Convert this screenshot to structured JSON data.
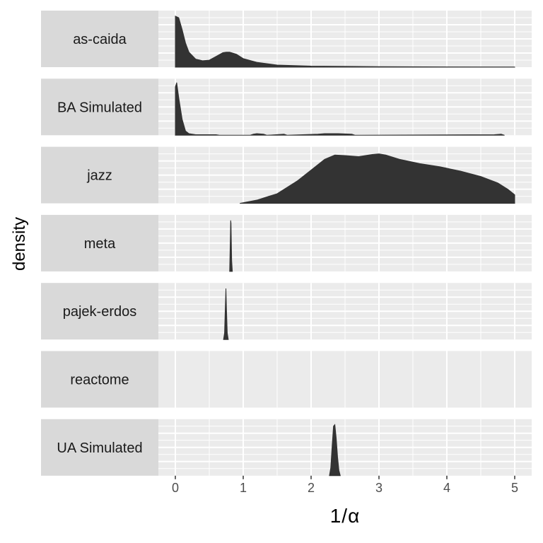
{
  "chart_data": {
    "type": "area",
    "facet_layout": "stacked rows, strip labels on left",
    "xlabel": "1/α",
    "ylabel": "density",
    "xlim": [
      -0.25,
      5.25
    ],
    "x_ticks": [
      0,
      1,
      2,
      3,
      4,
      5
    ],
    "x_tick_labels": [
      "0",
      "1",
      "2",
      "3",
      "4",
      "5"
    ],
    "grid": true,
    "fill_color": "#333333",
    "panel_background": "#ebebeb",
    "strip_background": "#d9d9d9",
    "facets": [
      {
        "label": "as-caida",
        "x": [
          0,
          0.05,
          0.1,
          0.15,
          0.2,
          0.3,
          0.4,
          0.5,
          0.6,
          0.7,
          0.75,
          0.8,
          0.9,
          1.0,
          1.2,
          1.5,
          2.0,
          3.0,
          4.0,
          5.0
        ],
        "density": [
          0.95,
          0.92,
          0.7,
          0.45,
          0.28,
          0.15,
          0.12,
          0.13,
          0.2,
          0.27,
          0.28,
          0.28,
          0.24,
          0.16,
          0.09,
          0.04,
          0.02,
          0.01,
          0.005,
          0.004
        ]
      },
      {
        "label": "BA Simulated",
        "x": [
          0,
          0.02,
          0.05,
          0.1,
          0.15,
          0.2,
          0.3,
          0.6,
          0.65,
          1.1,
          1.15,
          1.2,
          1.3,
          1.35,
          1.6,
          1.65,
          2.1,
          2.2,
          2.4,
          2.6,
          2.65,
          4.7,
          4.8,
          4.85
        ],
        "density": [
          0.9,
          0.98,
          0.7,
          0.3,
          0.08,
          0.03,
          0.01,
          0.01,
          0.0,
          0.0,
          0.02,
          0.03,
          0.02,
          0.0,
          0.02,
          0.0,
          0.02,
          0.03,
          0.03,
          0.02,
          0.0,
          0.01,
          0.02,
          0.0
        ]
      },
      {
        "label": "jazz",
        "x": [
          0.95,
          1.2,
          1.5,
          1.8,
          2.0,
          2.2,
          2.35,
          2.5,
          2.7,
          2.9,
          3.0,
          3.1,
          3.3,
          3.6,
          3.9,
          4.2,
          4.5,
          4.75,
          4.9,
          5.0
        ],
        "density": [
          0.0,
          0.06,
          0.18,
          0.42,
          0.62,
          0.82,
          0.9,
          0.89,
          0.87,
          0.91,
          0.92,
          0.9,
          0.82,
          0.74,
          0.68,
          0.6,
          0.5,
          0.38,
          0.26,
          0.16
        ]
      },
      {
        "label": "meta",
        "x": [
          0.8,
          0.81,
          0.815,
          0.82,
          0.825,
          0.83,
          0.84
        ],
        "density": [
          0.0,
          0.6,
          0.95,
          0.9,
          0.55,
          0.2,
          0.0
        ]
      },
      {
        "label": "pajek-erdos",
        "x": [
          0.71,
          0.725,
          0.735,
          0.745,
          0.755,
          0.765,
          0.78
        ],
        "density": [
          0.0,
          0.12,
          0.55,
          0.95,
          0.5,
          0.12,
          0.0
        ]
      },
      {
        "label": "reactome",
        "x": [],
        "density": []
      },
      {
        "label": "UA Simulated",
        "x": [
          2.27,
          2.29,
          2.31,
          2.33,
          2.35,
          2.37,
          2.39,
          2.41,
          2.43
        ],
        "density": [
          0.0,
          0.15,
          0.55,
          0.92,
          0.95,
          0.7,
          0.35,
          0.1,
          0.0
        ]
      }
    ]
  }
}
